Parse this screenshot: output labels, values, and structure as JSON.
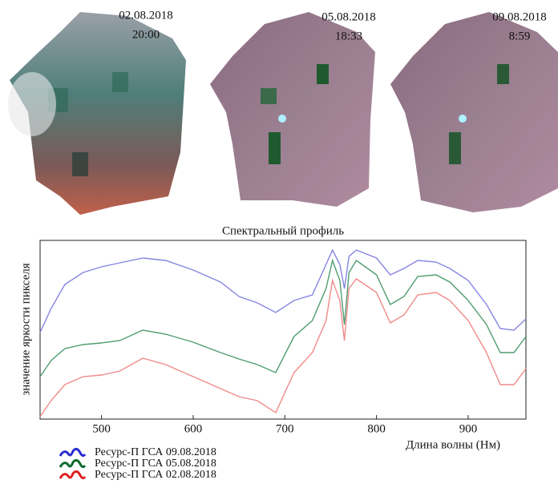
{
  "images": [
    {
      "date": "02.08.2018",
      "time": "20:00"
    },
    {
      "date": "05.08.2018",
      "time": "18:33"
    },
    {
      "date": "09.08.2018",
      "time": "8:59"
    }
  ],
  "chart_data": {
    "type": "line",
    "title": "Спектральный профиль",
    "x_label": "Длина волны (Нм)",
    "y_label": "значение яркости пикселя",
    "x": [
      433,
      445,
      460,
      480,
      500,
      520,
      545,
      570,
      600,
      630,
      650,
      670,
      690,
      710,
      730,
      745,
      752,
      760,
      765,
      770,
      778,
      800,
      815,
      830,
      845,
      865,
      880,
      900,
      920,
      935,
      950,
      963
    ],
    "series": [
      {
        "name": "Ресурс-П ГСА 09.08.2018",
        "color": "#8585e3",
        "legend_color": "#2a2ad0",
        "values": [
          108,
          138,
          168,
          183,
          190,
          195,
          201,
          198,
          186,
          171,
          153,
          145,
          133,
          148,
          155,
          193,
          211,
          193,
          163,
          203,
          211,
          201,
          180,
          188,
          198,
          196,
          188,
          173,
          143,
          113,
          111,
          125
        ]
      },
      {
        "name": "Ресурс-П ГСА 05.08.2018",
        "color": "#4f9d70",
        "legend_color": "#0d6a2a",
        "values": [
          53,
          73,
          88,
          93,
          95,
          98,
          111,
          106,
          96,
          83,
          75,
          68,
          58,
          103,
          123,
          163,
          198,
          173,
          118,
          183,
          198,
          180,
          143,
          153,
          178,
          180,
          171,
          148,
          118,
          83,
          83,
          103
        ]
      },
      {
        "name": "Ресурс-П ГСА 02.08.2018",
        "color": "#f08a8a",
        "legend_color": "#e02020",
        "values": [
          3,
          23,
          43,
          53,
          55,
          60,
          76,
          68,
          53,
          38,
          28,
          23,
          8,
          58,
          83,
          123,
          173,
          148,
          98,
          163,
          175,
          158,
          120,
          130,
          155,
          158,
          148,
          123,
          83,
          43,
          43,
          63
        ]
      }
    ],
    "xlim": [
      433,
      963
    ],
    "xticks": [
      500,
      600,
      700,
      800,
      900
    ],
    "ylim": [
      0,
      223
    ]
  }
}
